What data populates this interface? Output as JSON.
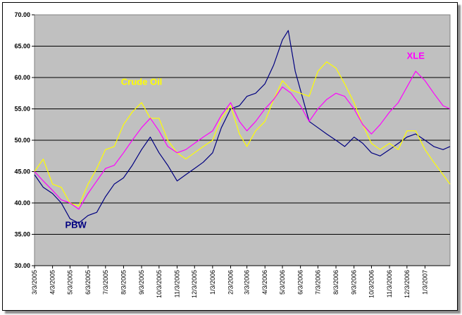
{
  "chart_data": {
    "type": "line",
    "title": "",
    "xlabel": "",
    "ylabel": "",
    "ylim": [
      30,
      70
    ],
    "yticks": [
      "30.00",
      "35.00",
      "40.00",
      "45.00",
      "50.00",
      "55.00",
      "60.00",
      "65.00",
      "70.00"
    ],
    "x_tick_labels": [
      "3/3/2005",
      "4/3/2005",
      "5/3/2005",
      "6/3/2005",
      "7/3/2005",
      "8/3/2005",
      "9/3/2005",
      "10/3/2005",
      "11/3/2005",
      "12/3/2005",
      "1/3/2006",
      "2/3/2006",
      "3/3/2006",
      "4/3/2006",
      "5/3/2006",
      "6/3/2006",
      "7/3/2006",
      "8/3/2006",
      "9/3/2006",
      "10/3/2006",
      "11/3/2006",
      "12/3/2006",
      "1/3/2007"
    ],
    "x_end": "2/15/2007",
    "grid": "horizontal",
    "background": "#c0c0c0",
    "series": [
      {
        "name": "PBW",
        "color": "#000080",
        "label_color": "#000080",
        "points": [
          [
            "3/3/2005",
            44.5
          ],
          [
            "3/18/2005",
            42.5
          ],
          [
            "4/3/2005",
            41.5
          ],
          [
            "4/18/2005",
            40.0
          ],
          [
            "5/3/2005",
            37.5
          ],
          [
            "5/18/2005",
            36.8
          ],
          [
            "6/3/2005",
            38.0
          ],
          [
            "6/18/2005",
            38.5
          ],
          [
            "7/3/2005",
            41.0
          ],
          [
            "7/18/2005",
            43.0
          ],
          [
            "8/3/2005",
            44.0
          ],
          [
            "8/18/2005",
            46.0
          ],
          [
            "9/3/2005",
            48.5
          ],
          [
            "9/18/2005",
            50.5
          ],
          [
            "10/3/2005",
            48.0
          ],
          [
            "10/18/2005",
            46.0
          ],
          [
            "11/3/2005",
            43.5
          ],
          [
            "11/18/2005",
            44.5
          ],
          [
            "12/3/2005",
            45.5
          ],
          [
            "12/18/2005",
            46.5
          ],
          [
            "1/3/2006",
            48.0
          ],
          [
            "1/18/2006",
            52.0
          ],
          [
            "2/3/2006",
            55.0
          ],
          [
            "2/18/2006",
            55.5
          ],
          [
            "3/3/2006",
            57.0
          ],
          [
            "3/18/2006",
            57.5
          ],
          [
            "4/3/2006",
            59.0
          ],
          [
            "4/18/2006",
            62.0
          ],
          [
            "5/3/2006",
            66.0
          ],
          [
            "5/13/2006",
            67.5
          ],
          [
            "5/25/2006",
            61.0
          ],
          [
            "6/3/2006",
            58.0
          ],
          [
            "6/18/2006",
            53.0
          ],
          [
            "7/3/2006",
            52.0
          ],
          [
            "7/18/2006",
            51.0
          ],
          [
            "8/3/2006",
            50.0
          ],
          [
            "8/18/2006",
            49.0
          ],
          [
            "9/3/2006",
            50.5
          ],
          [
            "9/18/2006",
            49.5
          ],
          [
            "10/3/2006",
            48.0
          ],
          [
            "10/18/2006",
            47.5
          ],
          [
            "11/3/2006",
            48.5
          ],
          [
            "11/18/2006",
            49.5
          ],
          [
            "12/3/2006",
            50.5
          ],
          [
            "12/18/2006",
            51.0
          ],
          [
            "1/3/2007",
            50.0
          ],
          [
            "1/18/2007",
            49.0
          ],
          [
            "2/3/2007",
            48.5
          ],
          [
            "2/15/2007",
            49.0
          ]
        ]
      },
      {
        "name": "Crude Oil",
        "color": "#ffff00",
        "label_color": "#ffff00",
        "points": [
          [
            "3/3/2005",
            45.0
          ],
          [
            "3/18/2005",
            47.0
          ],
          [
            "4/3/2005",
            43.0
          ],
          [
            "4/18/2005",
            42.5
          ],
          [
            "5/3/2005",
            40.0
          ],
          [
            "5/18/2005",
            39.5
          ],
          [
            "6/3/2005",
            43.0
          ],
          [
            "6/18/2005",
            45.5
          ],
          [
            "7/3/2005",
            48.5
          ],
          [
            "7/18/2005",
            49.0
          ],
          [
            "8/3/2005",
            52.5
          ],
          [
            "8/18/2005",
            54.5
          ],
          [
            "9/3/2005",
            56.0
          ],
          [
            "9/18/2005",
            53.5
          ],
          [
            "10/3/2005",
            53.5
          ],
          [
            "10/18/2005",
            50.0
          ],
          [
            "11/3/2005",
            48.0
          ],
          [
            "11/18/2005",
            47.0
          ],
          [
            "12/3/2005",
            48.0
          ],
          [
            "12/18/2005",
            49.0
          ],
          [
            "1/3/2006",
            50.0
          ],
          [
            "1/18/2006",
            53.5
          ],
          [
            "2/3/2006",
            55.5
          ],
          [
            "2/18/2006",
            51.0
          ],
          [
            "3/3/2006",
            49.0
          ],
          [
            "3/18/2006",
            51.5
          ],
          [
            "4/3/2006",
            53.0
          ],
          [
            "4/18/2006",
            56.5
          ],
          [
            "5/3/2006",
            59.5
          ],
          [
            "5/18/2006",
            58.0
          ],
          [
            "6/3/2006",
            57.5
          ],
          [
            "6/18/2006",
            57.0
          ],
          [
            "7/3/2006",
            61.0
          ],
          [
            "7/18/2006",
            62.5
          ],
          [
            "8/3/2006",
            61.5
          ],
          [
            "8/18/2006",
            59.0
          ],
          [
            "9/3/2006",
            56.0
          ],
          [
            "9/18/2006",
            52.5
          ],
          [
            "10/3/2006",
            49.5
          ],
          [
            "10/18/2006",
            48.5
          ],
          [
            "11/3/2006",
            49.5
          ],
          [
            "11/18/2006",
            48.5
          ],
          [
            "12/3/2006",
            51.5
          ],
          [
            "12/18/2006",
            51.5
          ],
          [
            "1/3/2007",
            48.5
          ],
          [
            "1/18/2007",
            46.5
          ],
          [
            "2/3/2007",
            44.5
          ],
          [
            "2/15/2007",
            43.0
          ]
        ]
      },
      {
        "name": "XLE",
        "color": "#ff00ff",
        "label_color": "#ff00ff",
        "points": [
          [
            "3/3/2005",
            45.0
          ],
          [
            "3/18/2005",
            43.5
          ],
          [
            "4/3/2005",
            42.0
          ],
          [
            "4/18/2005",
            40.5
          ],
          [
            "5/3/2005",
            40.0
          ],
          [
            "5/18/2005",
            39.0
          ],
          [
            "6/3/2005",
            41.5
          ],
          [
            "6/18/2005",
            43.5
          ],
          [
            "7/3/2005",
            45.5
          ],
          [
            "7/18/2005",
            46.0
          ],
          [
            "8/3/2005",
            48.0
          ],
          [
            "8/18/2005",
            50.0
          ],
          [
            "9/3/2005",
            52.0
          ],
          [
            "9/18/2005",
            53.5
          ],
          [
            "10/3/2005",
            51.5
          ],
          [
            "10/18/2005",
            49.0
          ],
          [
            "11/3/2005",
            48.0
          ],
          [
            "11/18/2005",
            48.5
          ],
          [
            "12/3/2005",
            49.5
          ],
          [
            "12/18/2005",
            50.5
          ],
          [
            "1/3/2006",
            51.5
          ],
          [
            "1/18/2006",
            54.0
          ],
          [
            "2/3/2006",
            56.0
          ],
          [
            "2/18/2006",
            53.0
          ],
          [
            "3/3/2006",
            51.5
          ],
          [
            "3/18/2006",
            53.0
          ],
          [
            "4/3/2006",
            55.0
          ],
          [
            "4/18/2006",
            56.5
          ],
          [
            "5/3/2006",
            58.5
          ],
          [
            "5/18/2006",
            57.5
          ],
          [
            "6/3/2006",
            55.5
          ],
          [
            "6/18/2006",
            53.0
          ],
          [
            "7/3/2006",
            55.0
          ],
          [
            "7/18/2006",
            56.5
          ],
          [
            "8/3/2006",
            57.5
          ],
          [
            "8/18/2006",
            57.0
          ],
          [
            "9/3/2006",
            55.0
          ],
          [
            "9/18/2006",
            52.5
          ],
          [
            "10/3/2006",
            51.0
          ],
          [
            "10/18/2006",
            52.5
          ],
          [
            "11/3/2006",
            54.5
          ],
          [
            "11/18/2006",
            56.0
          ],
          [
            "12/3/2006",
            58.5
          ],
          [
            "12/18/2006",
            61.0
          ],
          [
            "1/3/2007",
            59.5
          ],
          [
            "1/18/2007",
            57.5
          ],
          [
            "2/3/2007",
            55.5
          ],
          [
            "2/15/2007",
            55.0
          ]
        ]
      }
    ],
    "labels": [
      {
        "text": "PBW",
        "series": "PBW",
        "near": [
          "5/13/2005",
          36.0
        ]
      },
      {
        "text": "Crude Oil",
        "series": "Crude Oil",
        "near": [
          "9/3/2005",
          58.8
        ]
      },
      {
        "text": "XLE",
        "series": "XLE",
        "near": [
          "12/18/2006",
          63.0
        ]
      }
    ]
  }
}
